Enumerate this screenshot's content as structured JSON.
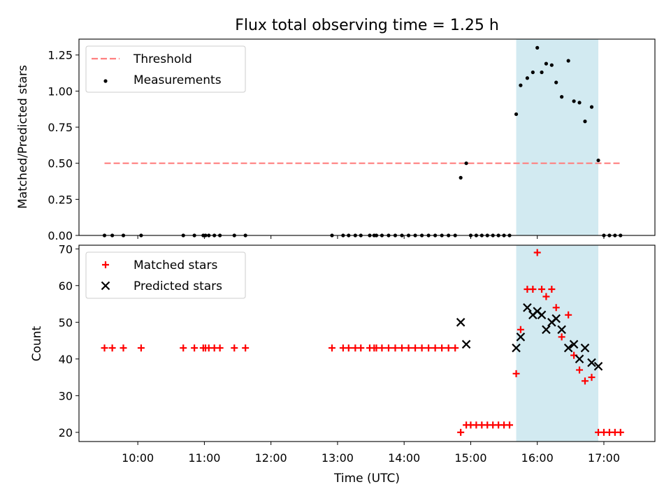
{
  "chart_data": [
    {
      "type": "scatter",
      "title": "Flux total observing time = 1.25 h",
      "xlabel": "",
      "ylabel": "Matched/Predicted stars",
      "ylim": [
        0,
        1.36
      ],
      "yticks": [
        "0.00",
        "0.25",
        "0.50",
        "0.75",
        "1.00",
        "1.25"
      ],
      "shaded_region_x": [
        "15:41",
        "16:55"
      ],
      "shaded_color": "#add8e6",
      "legend": "top-left",
      "series": [
        {
          "name": "Threshold",
          "kind": "dashed-line",
          "color": "#ff7f7f",
          "x": [
            "09:30",
            "17:15"
          ],
          "y": [
            0.5,
            0.5
          ]
        },
        {
          "name": "Measurements",
          "kind": "scatter-dot",
          "color": "#000000",
          "x": [
            "09:30",
            "09:37",
            "09:47",
            "10:03",
            "10:41",
            "10:51",
            "10:59",
            "11:01",
            "11:04",
            "11:09",
            "11:14",
            "11:27",
            "11:37",
            "12:55",
            "13:05",
            "13:10",
            "13:16",
            "13:21",
            "13:29",
            "13:33",
            "13:35",
            "13:40",
            "13:46",
            "13:52",
            "13:58",
            "14:04",
            "14:10",
            "14:16",
            "14:22",
            "14:28",
            "14:34",
            "14:40",
            "14:46",
            "14:51",
            "14:56",
            "15:00",
            "15:05",
            "15:10",
            "15:15",
            "15:20",
            "15:25",
            "15:30",
            "15:35",
            "15:41",
            "15:45",
            "15:51",
            "15:56",
            "16:00",
            "16:04",
            "16:08",
            "16:13",
            "16:17",
            "16:22",
            "16:28",
            "16:33",
            "16:38",
            "16:43",
            "16:49",
            "16:55",
            "17:00",
            "17:05",
            "17:10",
            "17:15"
          ],
          "y": [
            0,
            0,
            0,
            0,
            0,
            0,
            0,
            0,
            0,
            0,
            0,
            0,
            0,
            0,
            0,
            0,
            0,
            0,
            0,
            0,
            0,
            0,
            0,
            0,
            0,
            0,
            0,
            0,
            0,
            0,
            0,
            0,
            0,
            0.4,
            0.5,
            0,
            0,
            0,
            0,
            0,
            0,
            0,
            0,
            0.84,
            1.04,
            1.09,
            1.13,
            1.3,
            1.13,
            1.19,
            1.18,
            1.06,
            0.96,
            1.21,
            0.93,
            0.92,
            0.79,
            0.89,
            0.52,
            0,
            0,
            0,
            0
          ]
        }
      ]
    },
    {
      "type": "scatter",
      "title": "",
      "xlabel": "Time (UTC)",
      "ylabel": "Count",
      "ylim": [
        17.5,
        71
      ],
      "yticks": [
        "20",
        "30",
        "40",
        "50",
        "60",
        "70"
      ],
      "xlim": [
        "09:07",
        "17:46"
      ],
      "xticks": [
        "10:00",
        "11:00",
        "12:00",
        "13:00",
        "14:00",
        "15:00",
        "16:00",
        "17:00"
      ],
      "shaded_region_x": [
        "15:41",
        "16:55"
      ],
      "shaded_color": "#add8e6",
      "legend": "top-left",
      "series": [
        {
          "name": "Matched stars",
          "kind": "plus",
          "color": "#ff0000",
          "x": [
            "09:30",
            "09:37",
            "09:47",
            "10:03",
            "10:41",
            "10:51",
            "10:59",
            "11:01",
            "11:04",
            "11:09",
            "11:14",
            "11:27",
            "11:37",
            "12:55",
            "13:05",
            "13:10",
            "13:16",
            "13:21",
            "13:29",
            "13:33",
            "13:35",
            "13:40",
            "13:46",
            "13:52",
            "13:58",
            "14:04",
            "14:10",
            "14:16",
            "14:22",
            "14:28",
            "14:34",
            "14:40",
            "14:46",
            "14:51",
            "14:56",
            "15:00",
            "15:05",
            "15:10",
            "15:15",
            "15:20",
            "15:25",
            "15:30",
            "15:35",
            "15:41",
            "15:45",
            "15:51",
            "15:56",
            "16:00",
            "16:04",
            "16:08",
            "16:13",
            "16:17",
            "16:22",
            "16:28",
            "16:33",
            "16:38",
            "16:43",
            "16:49",
            "16:55",
            "17:00",
            "17:05",
            "17:10",
            "17:15"
          ],
          "y": [
            43,
            43,
            43,
            43,
            43,
            43,
            43,
            43,
            43,
            43,
            43,
            43,
            43,
            43,
            43,
            43,
            43,
            43,
            43,
            43,
            43,
            43,
            43,
            43,
            43,
            43,
            43,
            43,
            43,
            43,
            43,
            43,
            43,
            20,
            22,
            22,
            22,
            22,
            22,
            22,
            22,
            22,
            22,
            36,
            48,
            59,
            59,
            69,
            59,
            57,
            59,
            54,
            46,
            52,
            41,
            37,
            34,
            35,
            20,
            20,
            20,
            20,
            20
          ]
        },
        {
          "name": "Predicted stars",
          "kind": "x",
          "color": "#000000",
          "x": [
            "14:51",
            "14:56",
            "15:41",
            "15:45",
            "15:51",
            "15:56",
            "16:00",
            "16:04",
            "16:08",
            "16:13",
            "16:17",
            "16:22",
            "16:28",
            "16:33",
            "16:38",
            "16:43",
            "16:49",
            "16:55"
          ],
          "y": [
            50,
            44,
            43,
            46,
            54,
            52,
            53,
            52,
            48,
            50,
            51,
            48,
            43,
            44,
            40,
            43,
            39,
            38
          ]
        }
      ]
    }
  ]
}
